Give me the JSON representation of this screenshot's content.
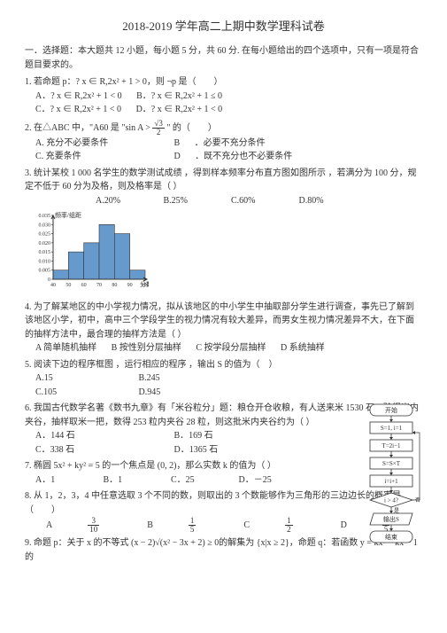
{
  "title": "2018-2019 学年高二上期中数学理科试卷",
  "section1": "一．选择题：本大题共   12 小题，每小题   5 分，共  60 分. 在每小题给出的四个选项中，只有一项是符合题目要求的。",
  "q1": {
    "stem": "1. 若命题 p：? x ∈ R,2x² + 1 > 0，则 ¬p 是（　　）",
    "a": "A．? x ∈ R,2x² + 1 < 0",
    "b": "B．? x ∈ R,2x² + 1 ≤ 0",
    "c": "C．? x ∈ R,2x² + 1 < 0",
    "d": "D．? x ∈ R,2x² + 1 < 0"
  },
  "q2": {
    "stem_a": "2. 在△ABC 中，\"A60",
    "stem_b": " 是  \"sin A >",
    "stem_c": "\" 的（　　）",
    "a": "A. 充分不必要条件",
    "b": "B",
    "b2": "．必要不充分条件",
    "c": "C. 充要条件",
    "d": "D",
    "d2": "．既不充分也不必要条件",
    "frac_n": "√3",
    "frac_d": "2"
  },
  "q3": {
    "stem": "3. 统计某校 1 000  名学生的数学测试成绩   ，得到样本频率分布直方图如图所示   ，若满分为  100 分，规定不低于  60 分为及格，则及格率是（   ）",
    "a": "A.20%",
    "b": "B.25%",
    "c": "C.60%",
    "d": "D.80%"
  },
  "hist": {
    "ylabel": "频率/组距",
    "xlabel": "分数",
    "yticks": [
      "0.035",
      "0.030",
      "0.025",
      "0.020",
      "0.015",
      "0.010",
      "0.005",
      "0"
    ],
    "xticks": [
      "40",
      "50",
      "60",
      "70",
      "80",
      "90",
      "100"
    ],
    "bars": [
      0.005,
      0.015,
      0.02,
      0.03,
      0.025,
      0.005
    ],
    "bar_color": "#6699cc",
    "axis_color": "#333333",
    "width": 140,
    "height": 90
  },
  "q4": {
    "stem": "4. 为了解某地区的中小学视力情况，拟从该地区的中小学生中抽取部分学生进行调查，事先已了解到该地区小学，初中，高中三个学段学生的视力情况有较大差异，而男女生视力情况差异不大，在下面的抽样方法中，最合理的抽样方法是（   ）",
    "a": "A 简单随机抽样",
    "b": "B  按性别分层抽样",
    "c": "C  按学段分层抽样",
    "d": "D   系统抽样"
  },
  "q5": {
    "stem": "5. 阅读下边的程序框图   ，运行相应的程序   ，输出 S 的值为（　）",
    "a": "A.15",
    "b": "B.245",
    "c": "C.105",
    "d": "D.945"
  },
  "q6": {
    "stem": "6. 我国古代数学名著《数书九章》有「米谷粒分」题：粮仓开仓收粮，有人送来米 1530 石，验得米内夹谷，抽样取米一把，数得   253 粒内夹谷  28 粒，则这批米内夹谷约为（   ）",
    "a": "A．144 石",
    "b": "B．169 石",
    "c": "C．338 石",
    "d": "D．1365 石"
  },
  "q7": {
    "stem_a": "7. 椭圆 5x² + ky² = 5 的一个焦点是  (0, 2)，那么实数  k 的值为（   ）",
    "a": "A．1",
    "b": "B．1",
    "c": "C．25",
    "d": "D．－25"
  },
  "q8": {
    "stem": "8. 从 1，2，3，4  中任意选取   3 个不同的数，则取出的   3 个数能够作为三角形的三边边长的概率是（　　）",
    "a_n": "3",
    "a_d": "10",
    "b_n": "1",
    "b_d": "5",
    "c_n": "1",
    "c_d": "2",
    "d_n": "3",
    "d_d": "5",
    "la": "A",
    "lb": "B",
    "lc": "C",
    "ld": "D"
  },
  "q9": {
    "stem": "9. 命题 p：关于 x 的不等式 (x − 2)√(x² − 3x + 2) ≥ 0的解集为 {x|x ≥ 2}，命题 q：若函数  y = kx² − kx − 1 的"
  },
  "flow": {
    "start": "开始",
    "s1": "S=1, i=1",
    "s2": "T=2i−1",
    "s3": "S=S×T",
    "s4": "i=i+1",
    "cond": "i > 4?",
    "no": "否",
    "yes": "是",
    "out": "输出S",
    "end": "结束",
    "stroke": "#333333",
    "fill": "#ffffff"
  }
}
